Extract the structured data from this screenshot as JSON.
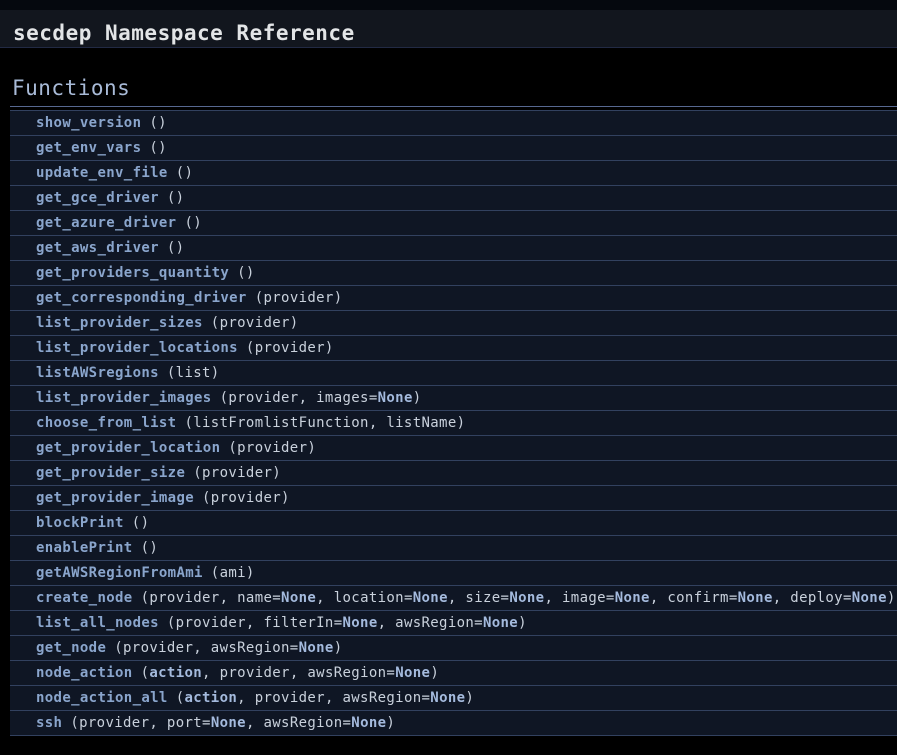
{
  "header": {
    "title": "secdep Namespace Reference"
  },
  "sections": {
    "functions": {
      "heading": "Functions"
    }
  },
  "colors": {
    "page-bg": "#000000",
    "header-top": "#05080e",
    "header-bg": "#12161e",
    "header-line": "#222a44",
    "title-color": "#e3e5e7",
    "heading-color": "#a9bbd8",
    "heading-underline": "#576890",
    "row-bg": "#0f1624",
    "row-sep": "#32415f",
    "fn-color": "#8aa5cc",
    "param-color": "#c9d1dc",
    "em-color": "#a4badd"
  },
  "functions": [
    {
      "name": "show_version",
      "tokens": [
        {
          "text": "()",
          "bold": false
        }
      ]
    },
    {
      "name": "get_env_vars",
      "tokens": [
        {
          "text": "()",
          "bold": false
        }
      ]
    },
    {
      "name": "update_env_file",
      "tokens": [
        {
          "text": "()",
          "bold": false
        }
      ]
    },
    {
      "name": "get_gce_driver",
      "tokens": [
        {
          "text": "()",
          "bold": false
        }
      ]
    },
    {
      "name": "get_azure_driver",
      "tokens": [
        {
          "text": "()",
          "bold": false
        }
      ]
    },
    {
      "name": "get_aws_driver",
      "tokens": [
        {
          "text": "()",
          "bold": false
        }
      ]
    },
    {
      "name": "get_providers_quantity",
      "tokens": [
        {
          "text": "()",
          "bold": false
        }
      ]
    },
    {
      "name": "get_corresponding_driver",
      "tokens": [
        {
          "text": "(provider)",
          "bold": false
        }
      ]
    },
    {
      "name": "list_provider_sizes",
      "tokens": [
        {
          "text": "(provider)",
          "bold": false
        }
      ]
    },
    {
      "name": "list_provider_locations",
      "tokens": [
        {
          "text": "(provider)",
          "bold": false
        }
      ]
    },
    {
      "name": "listAWSregions",
      "tokens": [
        {
          "text": "(list)",
          "bold": false
        }
      ]
    },
    {
      "name": "list_provider_images",
      "tokens": [
        {
          "text": "(provider, images=",
          "bold": false
        },
        {
          "text": "None",
          "bold": true
        },
        {
          "text": ")",
          "bold": false
        }
      ]
    },
    {
      "name": "choose_from_list",
      "tokens": [
        {
          "text": "(listFromlistFunction, listName)",
          "bold": false
        }
      ]
    },
    {
      "name": "get_provider_location",
      "tokens": [
        {
          "text": "(provider)",
          "bold": false
        }
      ]
    },
    {
      "name": "get_provider_size",
      "tokens": [
        {
          "text": "(provider)",
          "bold": false
        }
      ]
    },
    {
      "name": "get_provider_image",
      "tokens": [
        {
          "text": "(provider)",
          "bold": false
        }
      ]
    },
    {
      "name": "blockPrint",
      "tokens": [
        {
          "text": "()",
          "bold": false
        }
      ]
    },
    {
      "name": "enablePrint",
      "tokens": [
        {
          "text": "()",
          "bold": false
        }
      ]
    },
    {
      "name": "getAWSRegionFromAmi",
      "tokens": [
        {
          "text": "(ami)",
          "bold": false
        }
      ]
    },
    {
      "name": "create_node",
      "tokens": [
        {
          "text": "(provider, name=",
          "bold": false
        },
        {
          "text": "None",
          "bold": true
        },
        {
          "text": ", location=",
          "bold": false
        },
        {
          "text": "None",
          "bold": true
        },
        {
          "text": ", size=",
          "bold": false
        },
        {
          "text": "None",
          "bold": true
        },
        {
          "text": ", image=",
          "bold": false
        },
        {
          "text": "None",
          "bold": true
        },
        {
          "text": ", confirm=",
          "bold": false
        },
        {
          "text": "None",
          "bold": true
        },
        {
          "text": ", deploy=",
          "bold": false
        },
        {
          "text": "None",
          "bold": true
        },
        {
          "text": ")",
          "bold": false
        }
      ]
    },
    {
      "name": "list_all_nodes",
      "tokens": [
        {
          "text": "(provider, filterIn=",
          "bold": false
        },
        {
          "text": "None",
          "bold": true
        },
        {
          "text": ", awsRegion=",
          "bold": false
        },
        {
          "text": "None",
          "bold": true
        },
        {
          "text": ")",
          "bold": false
        }
      ]
    },
    {
      "name": "get_node",
      "tokens": [
        {
          "text": "(provider, awsRegion=",
          "bold": false
        },
        {
          "text": "None",
          "bold": true
        },
        {
          "text": ")",
          "bold": false
        }
      ]
    },
    {
      "name": "node_action",
      "tokens": [
        {
          "text": "(",
          "bold": false
        },
        {
          "text": "action",
          "bold": true
        },
        {
          "text": ", provider, awsRegion=",
          "bold": false
        },
        {
          "text": "None",
          "bold": true
        },
        {
          "text": ")",
          "bold": false
        }
      ]
    },
    {
      "name": "node_action_all",
      "tokens": [
        {
          "text": "(",
          "bold": false
        },
        {
          "text": "action",
          "bold": true
        },
        {
          "text": ", provider, awsRegion=",
          "bold": false
        },
        {
          "text": "None",
          "bold": true
        },
        {
          "text": ")",
          "bold": false
        }
      ]
    },
    {
      "name": "ssh",
      "tokens": [
        {
          "text": "(provider, port=",
          "bold": false
        },
        {
          "text": "None",
          "bold": true
        },
        {
          "text": ", awsRegion=",
          "bold": false
        },
        {
          "text": "None",
          "bold": true
        },
        {
          "text": ")",
          "bold": false
        }
      ]
    }
  ]
}
